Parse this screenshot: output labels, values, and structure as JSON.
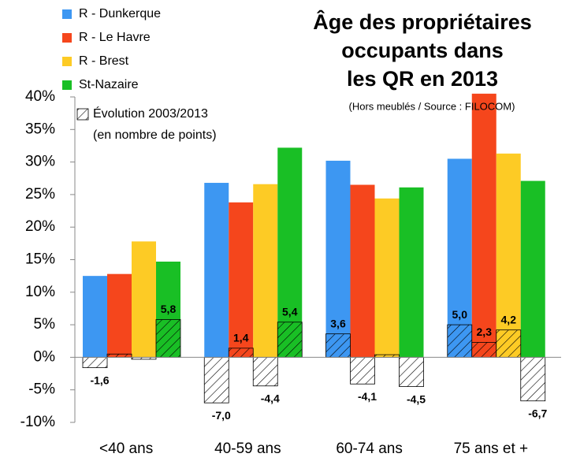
{
  "chart_data": {
    "type": "bar",
    "title": [
      "Âge des propriétaires",
      "occupants dans",
      "les QR en 2013"
    ],
    "subtitle": "(Hors meublés / Source : FILOCOM)",
    "categories": [
      "<40 ans",
      "40-59 ans",
      "60-74 ans",
      "75 ans et +"
    ],
    "series": [
      {
        "name": "R - Dunkerque",
        "color": "#3d97f2",
        "values": [
          12.5,
          26.8,
          30.2,
          30.5
        ],
        "change_values": [
          -1.6,
          -7.0,
          3.6,
          5.0
        ],
        "change_labels": [
          "-1,6",
          "-7,0",
          "3,6",
          "5,0"
        ]
      },
      {
        "name": "R - Le Havre",
        "color": "#f5461c",
        "values": [
          12.8,
          23.8,
          26.5,
          40.5
        ],
        "change_values": [
          0.5,
          1.4,
          -4.1,
          2.3
        ],
        "change_labels": [
          null,
          "1,4",
          "-4,1",
          "2,3"
        ]
      },
      {
        "name": "R - Brest",
        "color": "#fdcb25",
        "values": [
          17.8,
          26.6,
          24.4,
          31.3
        ],
        "change_values": [
          -0.3,
          -4.4,
          0.4,
          4.2
        ],
        "change_labels": [
          null,
          "-4,4",
          null,
          "4,2"
        ]
      },
      {
        "name": "St-Nazaire",
        "color": "#19bf25",
        "values": [
          14.7,
          32.2,
          26.1,
          27.1
        ],
        "change_values": [
          5.8,
          5.4,
          -4.5,
          -6.7
        ],
        "change_labels": [
          "5,8",
          "5,4",
          "-4,5",
          "-6,7"
        ]
      }
    ],
    "change_legend": [
      "Évolution 2003/2013",
      "(en nombre de points)"
    ],
    "ylim": [
      -10,
      40
    ],
    "yticks": [
      {
        "value": -10,
        "label": "-10%"
      },
      {
        "value": -5,
        "label": "-5%"
      },
      {
        "value": 0,
        "label": "0%"
      },
      {
        "value": 5,
        "label": "5%"
      },
      {
        "value": 10,
        "label": "10%"
      },
      {
        "value": 15,
        "label": "15%"
      },
      {
        "value": 20,
        "label": "20%"
      },
      {
        "value": 25,
        "label": "25%"
      },
      {
        "value": 30,
        "label": "30%"
      },
      {
        "value": 35,
        "label": "35%"
      },
      {
        "value": 40,
        "label": "40%"
      }
    ]
  }
}
